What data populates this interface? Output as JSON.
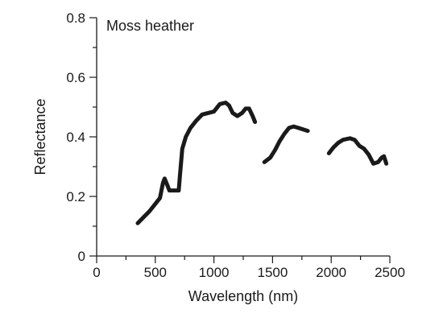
{
  "chart_data": {
    "type": "line",
    "title": "Moss heather",
    "xlabel": "Wavelength (nm)",
    "ylabel": "Reflectance",
    "xlim": [
      0,
      2500
    ],
    "ylim": [
      0,
      0.8
    ],
    "xticks": [
      0,
      500,
      1000,
      1500,
      2000,
      2500
    ],
    "xtick_labels": [
      "0",
      "500",
      "1000",
      "1500",
      "2000",
      "2500"
    ],
    "xminor": [
      250,
      750,
      1250,
      1750,
      2250
    ],
    "yticks": [
      0,
      0.2,
      0.4,
      0.6,
      0.8
    ],
    "ytick_labels": [
      "0",
      "0.2",
      "0.4",
      "0.6",
      "0.8"
    ],
    "yminor": [
      0.1,
      0.3,
      0.5,
      0.7
    ],
    "grid": false,
    "color": "#1a1a1a",
    "segments": [
      [
        [
          350,
          0.11
        ],
        [
          400,
          0.13
        ],
        [
          450,
          0.15
        ],
        [
          500,
          0.175
        ],
        [
          540,
          0.195
        ],
        [
          565,
          0.245
        ],
        [
          580,
          0.26
        ],
        [
          600,
          0.24
        ],
        [
          620,
          0.22
        ],
        [
          660,
          0.22
        ],
        [
          700,
          0.22
        ],
        [
          710,
          0.27
        ],
        [
          730,
          0.36
        ],
        [
          760,
          0.4
        ],
        [
          800,
          0.43
        ],
        [
          850,
          0.455
        ],
        [
          900,
          0.475
        ],
        [
          950,
          0.48
        ],
        [
          1000,
          0.485
        ],
        [
          1050,
          0.51
        ],
        [
          1100,
          0.515
        ],
        [
          1130,
          0.505
        ],
        [
          1160,
          0.48
        ],
        [
          1200,
          0.47
        ],
        [
          1240,
          0.48
        ],
        [
          1270,
          0.495
        ],
        [
          1300,
          0.495
        ],
        [
          1330,
          0.47
        ],
        [
          1350,
          0.45
        ]
      ],
      [
        [
          1430,
          0.315
        ],
        [
          1480,
          0.33
        ],
        [
          1520,
          0.355
        ],
        [
          1560,
          0.385
        ],
        [
          1600,
          0.41
        ],
        [
          1640,
          0.43
        ],
        [
          1680,
          0.435
        ],
        [
          1720,
          0.43
        ],
        [
          1760,
          0.425
        ],
        [
          1800,
          0.42
        ]
      ],
      [
        [
          1980,
          0.345
        ],
        [
          2020,
          0.365
        ],
        [
          2060,
          0.38
        ],
        [
          2100,
          0.39
        ],
        [
          2160,
          0.395
        ],
        [
          2200,
          0.39
        ],
        [
          2240,
          0.37
        ],
        [
          2280,
          0.36
        ],
        [
          2320,
          0.34
        ],
        [
          2360,
          0.31
        ],
        [
          2400,
          0.315
        ],
        [
          2430,
          0.33
        ],
        [
          2450,
          0.335
        ],
        [
          2470,
          0.31
        ]
      ]
    ]
  }
}
